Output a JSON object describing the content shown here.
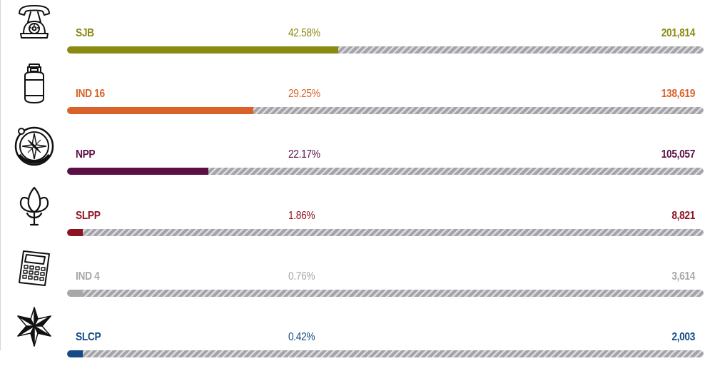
{
  "chart_data": {
    "type": "bar",
    "orientation": "horizontal",
    "xlim": [
      0,
      100
    ],
    "rows": [
      {
        "party": "SJB",
        "percent": 42.58,
        "percent_label": "42.58%",
        "votes_label": "201,814",
        "color": "#8a8a12",
        "icon": "telephone-icon"
      },
      {
        "party": "IND 16",
        "percent": 29.25,
        "percent_label": "29.25%",
        "votes_label": "138,619",
        "color": "#d9622b",
        "icon": "gas-cylinder-icon"
      },
      {
        "party": "NPP",
        "percent": 22.17,
        "percent_label": "22.17%",
        "votes_label": "105,057",
        "color": "#5c0f45",
        "icon": "compass-icon"
      },
      {
        "party": "SLPP",
        "percent": 1.86,
        "percent_label": "1.86%",
        "votes_label": "8,821",
        "color": "#8e1320",
        "icon": "lotus-bud-icon"
      },
      {
        "party": "IND 4",
        "percent": 0.76,
        "percent_label": "0.76%",
        "votes_label": "3,614",
        "color": "#a8a8a8",
        "icon": "calculator-icon"
      },
      {
        "party": "SLCP",
        "percent": 0.42,
        "percent_label": "0.42%",
        "votes_label": "2,003",
        "color": "#134a87",
        "icon": "star-icon"
      }
    ]
  }
}
